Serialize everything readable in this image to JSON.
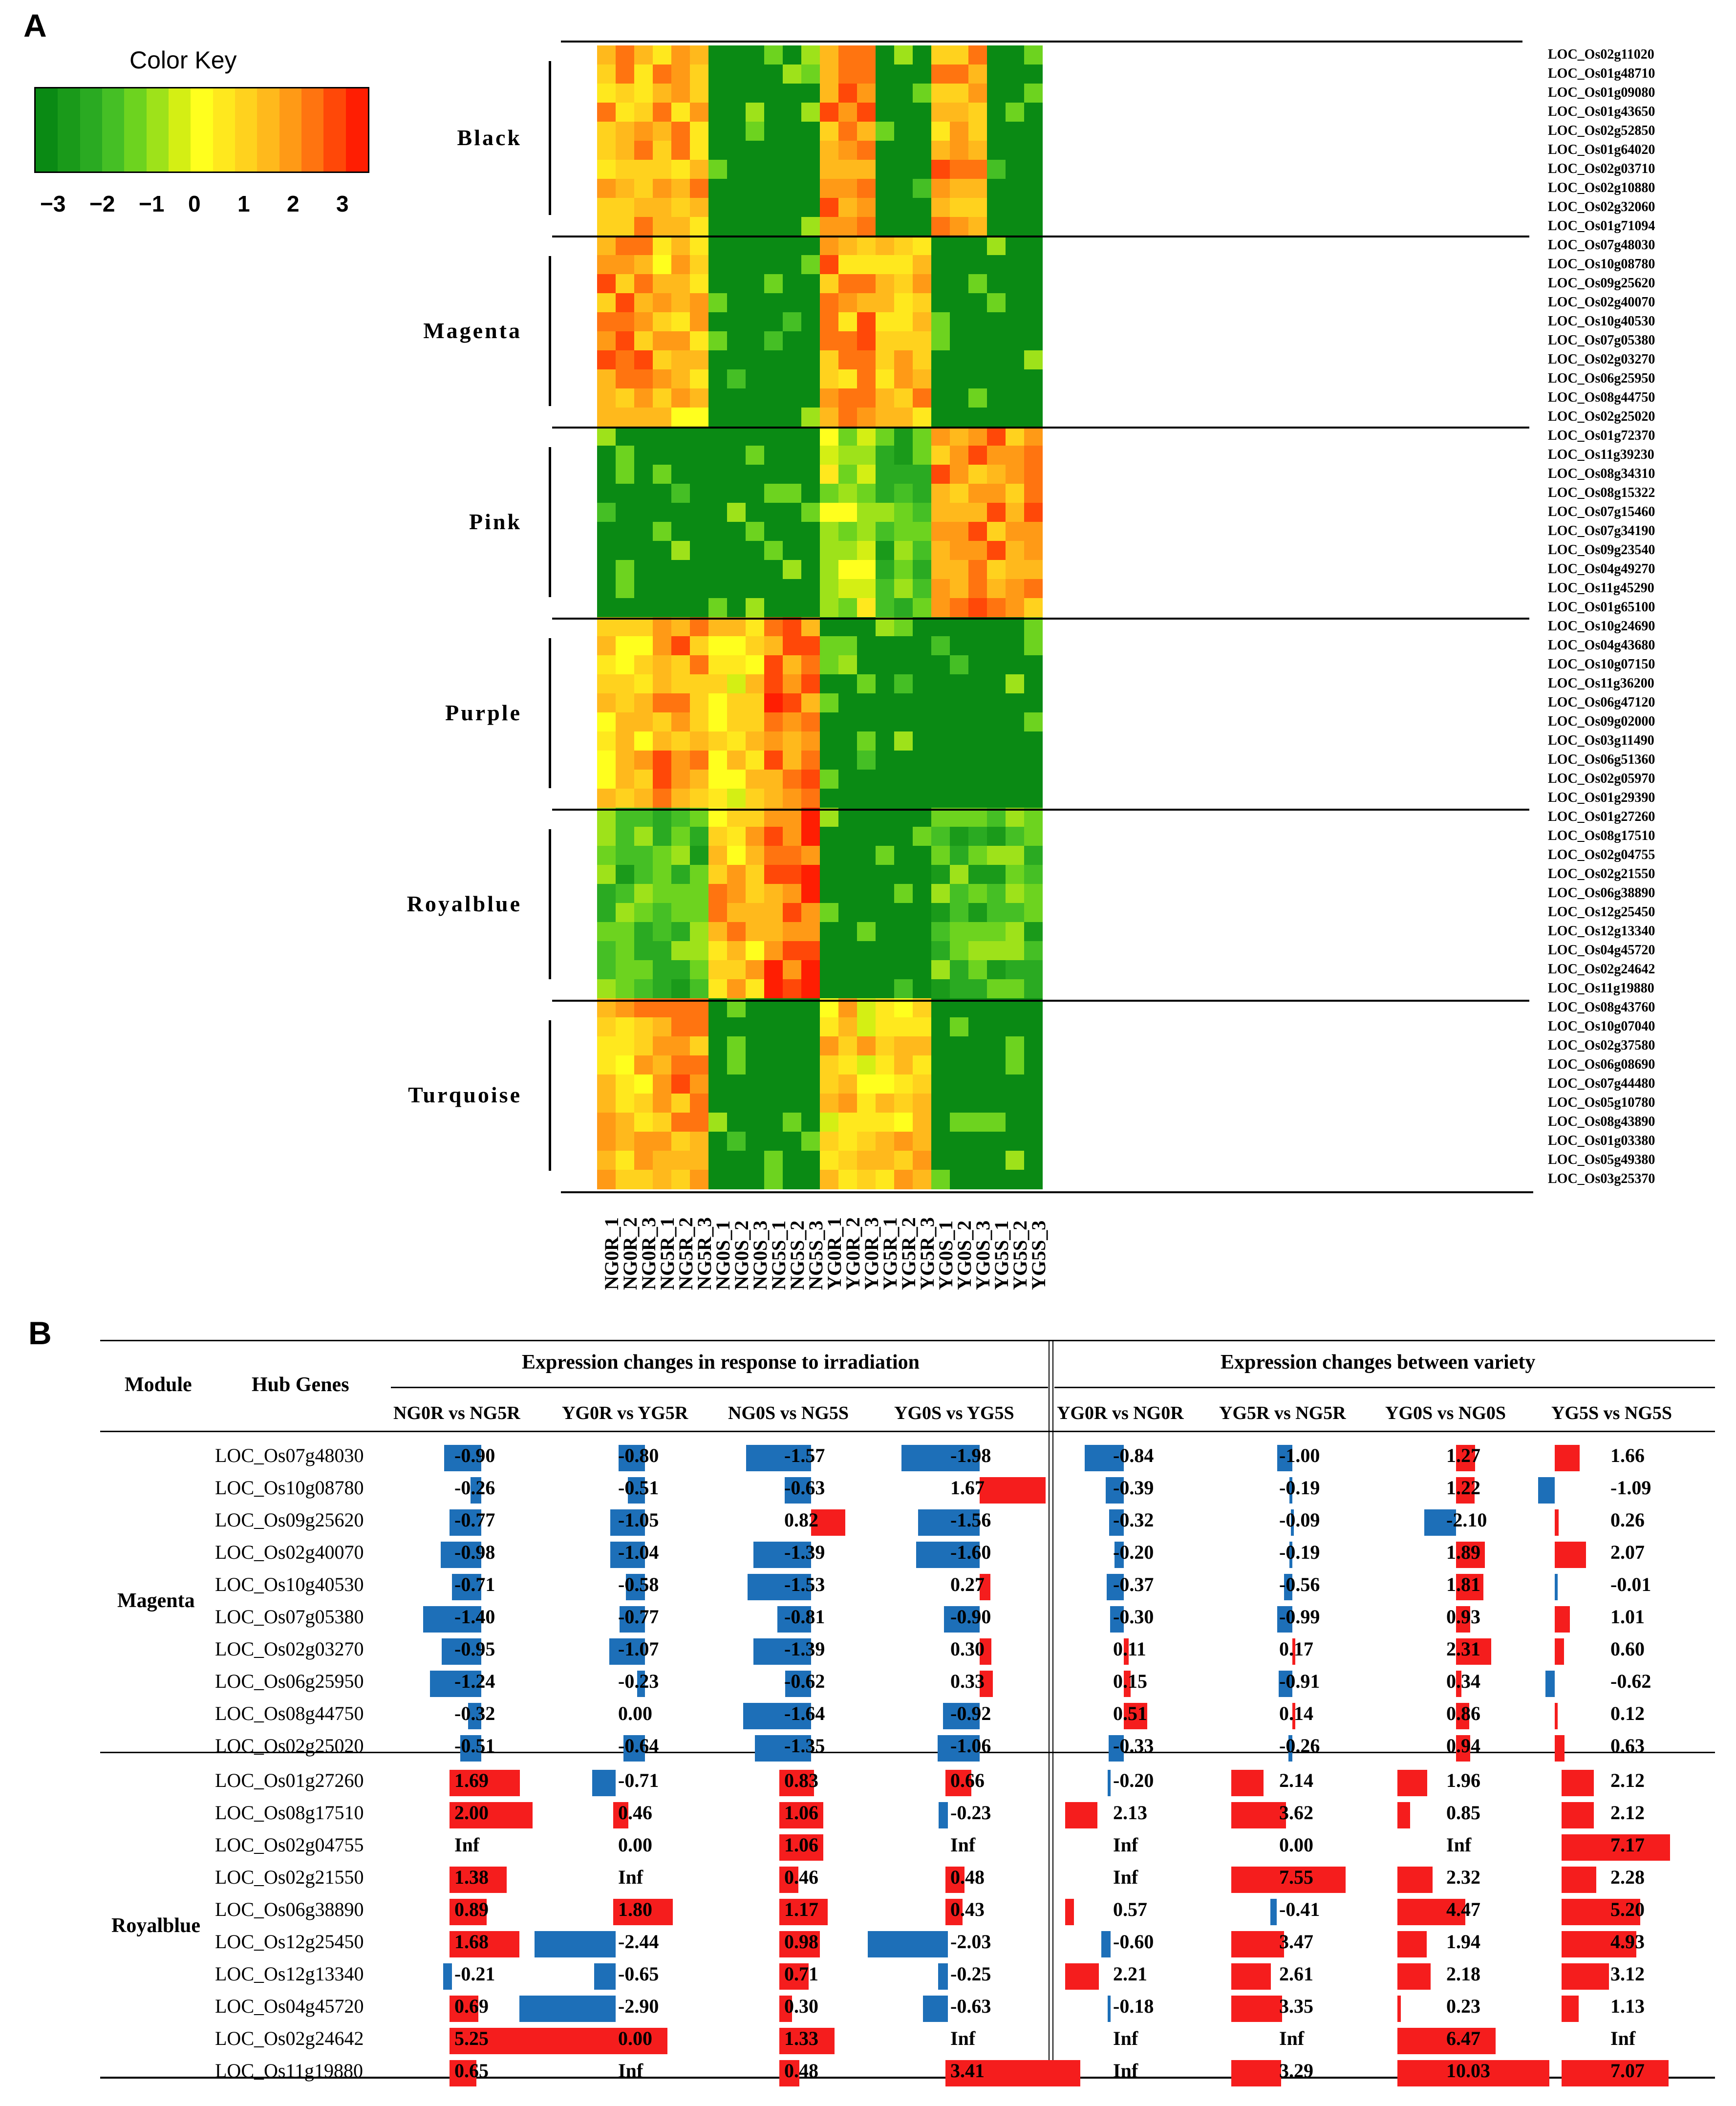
{
  "panel_a": {
    "letter": "A",
    "color_key": {
      "title": "Color Key",
      "ticks": [
        "-3",
        "-2",
        "-1",
        "0",
        "1",
        "2",
        "3"
      ],
      "gradient": [
        "#0a8a14",
        "#1a9a1a",
        "#2aaa22",
        "#45bf25",
        "#6dd31f",
        "#9ee21a",
        "#d4ef14",
        "#ffff1e",
        "#ffe81e",
        "#ffd21e",
        "#ffb91c",
        "#ff9a16",
        "#ff7410",
        "#ff4808",
        "#ff1e02"
      ]
    },
    "modules": [
      "Black",
      "Magenta",
      "Pink",
      "Purple",
      "Royalblue",
      "Turquoise"
    ],
    "genes": [
      "LOC_Os02g11020",
      "LOC_Os01g48710",
      "LOC_Os01g09080",
      "LOC_Os01g43650",
      "LOC_Os02g52850",
      "LOC_Os01g64020",
      "LOC_Os02g03710",
      "LOC_Os02g10880",
      "LOC_Os02g32060",
      "LOC_Os01g71094",
      "LOC_Os07g48030",
      "LOC_Os10g08780",
      "LOC_Os09g25620",
      "LOC_Os02g40070",
      "LOC_Os10g40530",
      "LOC_Os07g05380",
      "LOC_Os02g03270",
      "LOC_Os06g25950",
      "LOC_Os08g44750",
      "LOC_Os02g25020",
      "LOC_Os01g72370",
      "LOC_Os11g39230",
      "LOC_Os08g34310",
      "LOC_Os08g15322",
      "LOC_Os07g15460",
      "LOC_Os07g34190",
      "LOC_Os09g23540",
      "LOC_Os04g49270",
      "LOC_Os11g45290",
      "LOC_Os01g65100",
      "LOC_Os10g24690",
      "LOC_Os04g43680",
      "LOC_Os10g07150",
      "LOC_Os11g36200",
      "LOC_Os06g47120",
      "LOC_Os09g02000",
      "LOC_Os03g11490",
      "LOC_Os06g51360",
      "LOC_Os02g05970",
      "LOC_Os01g29390",
      "LOC_Os01g27260",
      "LOC_Os08g17510",
      "LOC_Os02g04755",
      "LOC_Os02g21550",
      "LOC_Os06g38890",
      "LOC_Os12g25450",
      "LOC_Os12g13340",
      "LOC_Os04g45720",
      "LOC_Os02g24642",
      "LOC_Os11g19880",
      "LOC_Os08g43760",
      "LOC_Os10g07040",
      "LOC_Os02g37580",
      "LOC_Os06g08690",
      "LOC_Os07g44480",
      "LOC_Os05g10780",
      "LOC_Os08g43890",
      "LOC_Os01g03380",
      "LOC_Os05g49380",
      "LOC_Os03g25370"
    ],
    "samples": [
      "NG0R_1",
      "NG0R_2",
      "NG0R_3",
      "NG5R_1",
      "NG5R_2",
      "NG5R_3",
      "NG0S_1",
      "NG0S_2",
      "NG0S_3",
      "NG5S_1",
      "NG5S_2",
      "NG5S_3",
      "YG0R_1",
      "YG0R_2",
      "YG0R_3",
      "YG5R_1",
      "YG5R_2",
      "YG5R_3",
      "YG0S_1",
      "YG0S_2",
      "YG0S_3",
      "YG5S_1",
      "YG5S_2",
      "YG5S_3"
    ],
    "module_block_means": [
      [
        1.2,
        1.2,
        -3.0,
        -3.0,
        1.4,
        -3.0,
        1.4,
        -3.0
      ],
      [
        1.6,
        0.8,
        -3.0,
        -3.0,
        1.4,
        1.0,
        -3.0,
        -3.0
      ],
      [
        -3.0,
        -3.0,
        -3.0,
        -3.0,
        -0.5,
        -1.5,
        1.6,
        1.6
      ],
      [
        0.6,
        1.5,
        0.4,
        1.8,
        -3.0,
        -3.0,
        -3.0,
        -3.0
      ],
      [
        -1.5,
        -1.5,
        1.0,
        2.2,
        -3.0,
        -3.0,
        -1.5,
        -1.5
      ],
      [
        1.0,
        1.4,
        -3.0,
        -3.0,
        0.6,
        0.9,
        -3.0,
        -3.0
      ]
    ]
  },
  "panel_b": {
    "letter": "B",
    "headers": {
      "module": "Module",
      "hub_genes": "Hub Genes",
      "group1": "Expression changes in response to irradiation",
      "group2": "Expression changes between variety",
      "columns": [
        "NG0R vs NG5R",
        "YG0R vs YG5R",
        "NG0S vs NG5S",
        "YG0S vs YG5S",
        "YG0R  vs  NG0R",
        "YG5R  vs  NG5R",
        "YG0S  vs  NG0S",
        "YG5S  vs  NG5S"
      ]
    },
    "modules": [
      {
        "name": "Magenta",
        "rows": [
          {
            "gene": "LOC_Os07g48030",
            "values": [
              "-0.90",
              "-0.80",
              "-1.57",
              "-1.98",
              "-0.84",
              "-1.00",
              "1.27",
              "1.66"
            ]
          },
          {
            "gene": "LOC_Os10g08780",
            "values": [
              "-0.26",
              "-0.51",
              "-0.63",
              "1.67",
              "-0.39",
              "-0.19",
              "1.22",
              "-1.09"
            ]
          },
          {
            "gene": "LOC_Os09g25620",
            "values": [
              "-0.77",
              "-1.05",
              "0.82",
              "-1.56",
              "-0.32",
              "-0.09",
              "-2.10",
              "0.26"
            ]
          },
          {
            "gene": "LOC_Os02g40070",
            "values": [
              "-0.98",
              "-1.04",
              "-1.39",
              "-1.60",
              "-0.20",
              "-0.19",
              "1.89",
              "2.07"
            ]
          },
          {
            "gene": "LOC_Os10g40530",
            "values": [
              "-0.71",
              "-0.58",
              "-1.53",
              "0.27",
              "-0.37",
              "-0.56",
              "1.81",
              "-0.01"
            ]
          },
          {
            "gene": "LOC_Os07g05380",
            "values": [
              "-1.40",
              "-0.77",
              "-0.81",
              "-0.90",
              "-0.30",
              "-0.99",
              "0.93",
              "1.01"
            ]
          },
          {
            "gene": "LOC_Os02g03270",
            "values": [
              "-0.95",
              "-1.07",
              "-1.39",
              "0.30",
              "0.11",
              "0.17",
              "2.31",
              "0.60"
            ]
          },
          {
            "gene": "LOC_Os06g25950",
            "values": [
              "-1.24",
              "-0.23",
              "-0.62",
              "0.33",
              "0.15",
              "-0.91",
              "0.34",
              "-0.62"
            ]
          },
          {
            "gene": "LOC_Os08g44750",
            "values": [
              "-0.32",
              "0.00",
              "-1.64",
              "-0.92",
              "0.51",
              "0.14",
              "0.86",
              "0.12"
            ]
          },
          {
            "gene": "LOC_Os02g25020",
            "values": [
              "-0.51",
              "-0.64",
              "-1.35",
              "-1.06",
              "-0.33",
              "-0.26",
              "0.94",
              "0.63"
            ]
          }
        ]
      },
      {
        "name": "Royalblue",
        "rows": [
          {
            "gene": "LOC_Os01g27260",
            "values": [
              "1.69",
              "-0.71",
              "0.83",
              "0.66",
              "-0.20",
              "2.14",
              "1.96",
              "2.12"
            ]
          },
          {
            "gene": "LOC_Os08g17510",
            "values": [
              "2.00",
              "0.46",
              "1.06",
              "-0.23",
              "2.13",
              "3.62",
              "0.85",
              "2.12"
            ]
          },
          {
            "gene": "LOC_Os02g04755",
            "values": [
              "Inf",
              "0.00",
              "1.06",
              "Inf",
              "Inf",
              "0.00",
              "Inf",
              "7.17"
            ]
          },
          {
            "gene": "LOC_Os02g21550",
            "values": [
              "1.38",
              "Inf",
              "0.46",
              "0.48",
              "Inf",
              "7.55",
              "2.32",
              "2.28"
            ]
          },
          {
            "gene": "LOC_Os06g38890",
            "values": [
              "0.89",
              "1.80",
              "1.17",
              "0.43",
              "0.57",
              "-0.41",
              "4.47",
              "5.20"
            ]
          },
          {
            "gene": "LOC_Os12g25450",
            "values": [
              "1.68",
              "-2.44",
              "0.98",
              "-2.03",
              "-0.60",
              "3.47",
              "1.94",
              "4.93"
            ]
          },
          {
            "gene": "LOC_Os12g13340",
            "values": [
              "-0.21",
              "-0.65",
              "0.71",
              "-0.25",
              "2.21",
              "2.61",
              "2.18",
              "3.12"
            ]
          },
          {
            "gene": "LOC_Os04g45720",
            "values": [
              "0.69",
              "-2.90",
              "0.30",
              "-0.63",
              "-0.18",
              "3.35",
              "0.23",
              "1.13"
            ]
          },
          {
            "gene": "LOC_Os02g24642",
            "values": [
              "5.25",
              "0.00",
              "1.33",
              "Inf",
              "Inf",
              "Inf",
              "6.47",
              "Inf"
            ]
          },
          {
            "gene": "LOC_Os11g19880",
            "values": [
              "0.65",
              "Inf",
              "0.48",
              "3.41",
              "Inf",
              "3.29",
              "10.03",
              "7.07"
            ]
          }
        ]
      }
    ]
  }
}
